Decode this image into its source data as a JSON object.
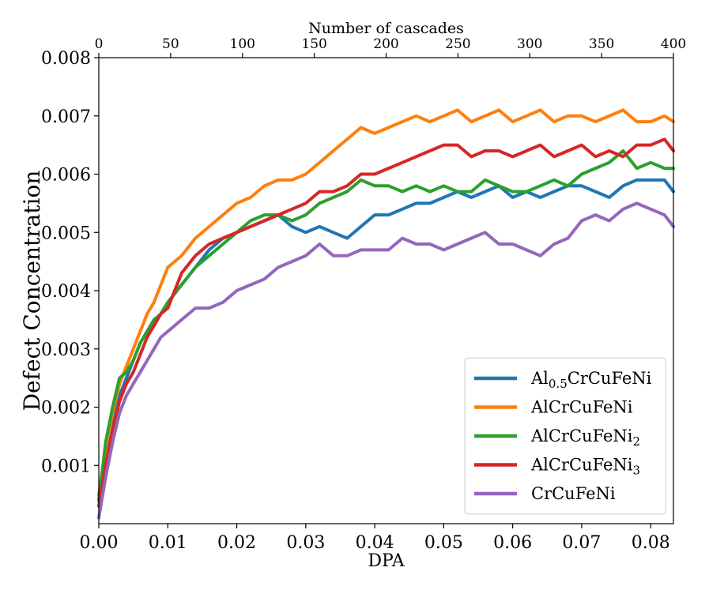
{
  "chart_data": {
    "type": "line",
    "xlabel": "DPA",
    "ylabel": "Defect Concentration",
    "top_xlabel": "Number of cascades",
    "xlim": [
      0.0,
      0.0833
    ],
    "ylim": [
      0.0,
      0.008
    ],
    "top_xlim": [
      0,
      400
    ],
    "x_ticks": [
      "0.00",
      "0.01",
      "0.02",
      "0.03",
      "0.04",
      "0.05",
      "0.06",
      "0.07",
      "0.08"
    ],
    "x_tick_values": [
      0.0,
      0.01,
      0.02,
      0.03,
      0.04,
      0.05,
      0.06,
      0.07,
      0.08
    ],
    "y_ticks": [
      "0.001",
      "0.002",
      "0.003",
      "0.004",
      "0.005",
      "0.006",
      "0.007",
      "0.008"
    ],
    "y_tick_values": [
      0.001,
      0.002,
      0.003,
      0.004,
      0.005,
      0.006,
      0.007,
      0.008
    ],
    "top_x_ticks": [
      "0",
      "50",
      "100",
      "150",
      "200",
      "250",
      "300",
      "350",
      "400"
    ],
    "top_x_tick_values": [
      0,
      50,
      100,
      150,
      200,
      250,
      300,
      350,
      400
    ],
    "grid": false,
    "legend_position": "bottom-right",
    "series": [
      {
        "name": "Al0.5CrCuFeNi",
        "name_base": "Al",
        "name_sub": "0.5",
        "name_tail": "CrCuFeNi",
        "color": "#1f77b4",
        "x": [
          0.0,
          0.001,
          0.002,
          0.003,
          0.004,
          0.005,
          0.006,
          0.007,
          0.008,
          0.009,
          0.01,
          0.012,
          0.014,
          0.016,
          0.018,
          0.02,
          0.022,
          0.024,
          0.026,
          0.028,
          0.03,
          0.032,
          0.034,
          0.036,
          0.038,
          0.04,
          0.042,
          0.044,
          0.046,
          0.048,
          0.05,
          0.052,
          0.054,
          0.056,
          0.058,
          0.06,
          0.062,
          0.064,
          0.066,
          0.068,
          0.07,
          0.072,
          0.074,
          0.076,
          0.078,
          0.08,
          0.082,
          0.0833
        ],
        "y": [
          0.0004,
          0.0012,
          0.0018,
          0.0022,
          0.0025,
          0.0028,
          0.0031,
          0.0033,
          0.0035,
          0.0036,
          0.0038,
          0.0041,
          0.0044,
          0.0047,
          0.0049,
          0.005,
          0.0051,
          0.0052,
          0.0053,
          0.0051,
          0.005,
          0.0051,
          0.005,
          0.0049,
          0.0051,
          0.0053,
          0.0053,
          0.0054,
          0.0055,
          0.0055,
          0.0056,
          0.0057,
          0.0056,
          0.0057,
          0.0058,
          0.0056,
          0.0057,
          0.0056,
          0.0057,
          0.0058,
          0.0058,
          0.0057,
          0.0056,
          0.0058,
          0.0059,
          0.0059,
          0.0059,
          0.0057
        ]
      },
      {
        "name": "AlCrCuFeNi",
        "name_base": "AlCrCuFeNi",
        "name_sub": "",
        "name_tail": "",
        "color": "#ff7f0e",
        "x": [
          0.0,
          0.001,
          0.002,
          0.003,
          0.004,
          0.005,
          0.006,
          0.007,
          0.008,
          0.009,
          0.01,
          0.012,
          0.014,
          0.016,
          0.018,
          0.02,
          0.022,
          0.024,
          0.026,
          0.028,
          0.03,
          0.032,
          0.034,
          0.036,
          0.038,
          0.04,
          0.042,
          0.044,
          0.046,
          0.048,
          0.05,
          0.052,
          0.054,
          0.056,
          0.058,
          0.06,
          0.062,
          0.064,
          0.066,
          0.068,
          0.07,
          0.072,
          0.074,
          0.076,
          0.078,
          0.08,
          0.082,
          0.0833
        ],
        "y": [
          0.0005,
          0.0013,
          0.0019,
          0.0024,
          0.0027,
          0.003,
          0.0033,
          0.0036,
          0.0038,
          0.0041,
          0.0044,
          0.0046,
          0.0049,
          0.0051,
          0.0053,
          0.0055,
          0.0056,
          0.0058,
          0.0059,
          0.0059,
          0.006,
          0.0062,
          0.0064,
          0.0066,
          0.0068,
          0.0067,
          0.0068,
          0.0069,
          0.007,
          0.0069,
          0.007,
          0.0071,
          0.0069,
          0.007,
          0.0071,
          0.0069,
          0.007,
          0.0071,
          0.0069,
          0.007,
          0.007,
          0.0069,
          0.007,
          0.0071,
          0.0069,
          0.0069,
          0.007,
          0.0069
        ]
      },
      {
        "name": "AlCrCuFeNi2",
        "name_base": "AlCrCuFeNi",
        "name_sub": "2",
        "name_tail": "",
        "color": "#2ca02c",
        "x": [
          0.0,
          0.001,
          0.002,
          0.003,
          0.004,
          0.005,
          0.006,
          0.007,
          0.008,
          0.009,
          0.01,
          0.012,
          0.014,
          0.016,
          0.018,
          0.02,
          0.022,
          0.024,
          0.026,
          0.028,
          0.03,
          0.032,
          0.034,
          0.036,
          0.038,
          0.04,
          0.042,
          0.044,
          0.046,
          0.048,
          0.05,
          0.052,
          0.054,
          0.056,
          0.058,
          0.06,
          0.062,
          0.064,
          0.066,
          0.068,
          0.07,
          0.072,
          0.074,
          0.076,
          0.078,
          0.08,
          0.082,
          0.0833
        ],
        "y": [
          0.0004,
          0.0014,
          0.002,
          0.0025,
          0.0026,
          0.0028,
          0.0031,
          0.0033,
          0.0035,
          0.0036,
          0.0038,
          0.0041,
          0.0044,
          0.0046,
          0.0048,
          0.005,
          0.0052,
          0.0053,
          0.0053,
          0.0052,
          0.0053,
          0.0055,
          0.0056,
          0.0057,
          0.0059,
          0.0058,
          0.0058,
          0.0057,
          0.0058,
          0.0057,
          0.0058,
          0.0057,
          0.0057,
          0.0059,
          0.0058,
          0.0057,
          0.0057,
          0.0058,
          0.0059,
          0.0058,
          0.006,
          0.0061,
          0.0062,
          0.0064,
          0.0061,
          0.0062,
          0.0061,
          0.0061
        ]
      },
      {
        "name": "AlCrCuFeNi3",
        "name_base": "AlCrCuFeNi",
        "name_sub": "3",
        "name_tail": "",
        "color": "#d62728",
        "x": [
          0.0,
          0.001,
          0.002,
          0.003,
          0.004,
          0.005,
          0.006,
          0.007,
          0.008,
          0.009,
          0.01,
          0.012,
          0.014,
          0.016,
          0.018,
          0.02,
          0.022,
          0.024,
          0.026,
          0.028,
          0.03,
          0.032,
          0.034,
          0.036,
          0.038,
          0.04,
          0.042,
          0.044,
          0.046,
          0.048,
          0.05,
          0.052,
          0.054,
          0.056,
          0.058,
          0.06,
          0.062,
          0.064,
          0.066,
          0.068,
          0.07,
          0.072,
          0.074,
          0.076,
          0.078,
          0.08,
          0.082,
          0.0833
        ],
        "y": [
          0.0003,
          0.001,
          0.0016,
          0.0021,
          0.0024,
          0.0026,
          0.0029,
          0.0032,
          0.0034,
          0.0036,
          0.0037,
          0.0043,
          0.0046,
          0.0048,
          0.0049,
          0.005,
          0.0051,
          0.0052,
          0.0053,
          0.0054,
          0.0055,
          0.0057,
          0.0057,
          0.0058,
          0.006,
          0.006,
          0.0061,
          0.0062,
          0.0063,
          0.0064,
          0.0065,
          0.0065,
          0.0063,
          0.0064,
          0.0064,
          0.0063,
          0.0064,
          0.0065,
          0.0063,
          0.0064,
          0.0065,
          0.0063,
          0.0064,
          0.0063,
          0.0065,
          0.0065,
          0.0066,
          0.0064
        ]
      },
      {
        "name": "CrCuFeNi",
        "name_base": "CrCuFeNi",
        "name_sub": "",
        "name_tail": "",
        "color": "#9467bd",
        "x": [
          0.0,
          0.001,
          0.002,
          0.003,
          0.004,
          0.005,
          0.006,
          0.007,
          0.008,
          0.009,
          0.01,
          0.012,
          0.014,
          0.016,
          0.018,
          0.02,
          0.022,
          0.024,
          0.026,
          0.028,
          0.03,
          0.032,
          0.034,
          0.036,
          0.038,
          0.04,
          0.042,
          0.044,
          0.046,
          0.048,
          0.05,
          0.052,
          0.054,
          0.056,
          0.058,
          0.06,
          0.062,
          0.064,
          0.066,
          0.068,
          0.07,
          0.072,
          0.074,
          0.076,
          0.078,
          0.08,
          0.082,
          0.0833
        ],
        "y": [
          0.0001,
          0.0008,
          0.0014,
          0.0019,
          0.0022,
          0.0024,
          0.0026,
          0.0028,
          0.003,
          0.0032,
          0.0033,
          0.0035,
          0.0037,
          0.0037,
          0.0038,
          0.004,
          0.0041,
          0.0042,
          0.0044,
          0.0045,
          0.0046,
          0.0048,
          0.0046,
          0.0046,
          0.0047,
          0.0047,
          0.0047,
          0.0049,
          0.0048,
          0.0048,
          0.0047,
          0.0048,
          0.0049,
          0.005,
          0.0048,
          0.0048,
          0.0047,
          0.0046,
          0.0048,
          0.0049,
          0.0052,
          0.0053,
          0.0052,
          0.0054,
          0.0055,
          0.0054,
          0.0053,
          0.0051
        ]
      }
    ]
  }
}
